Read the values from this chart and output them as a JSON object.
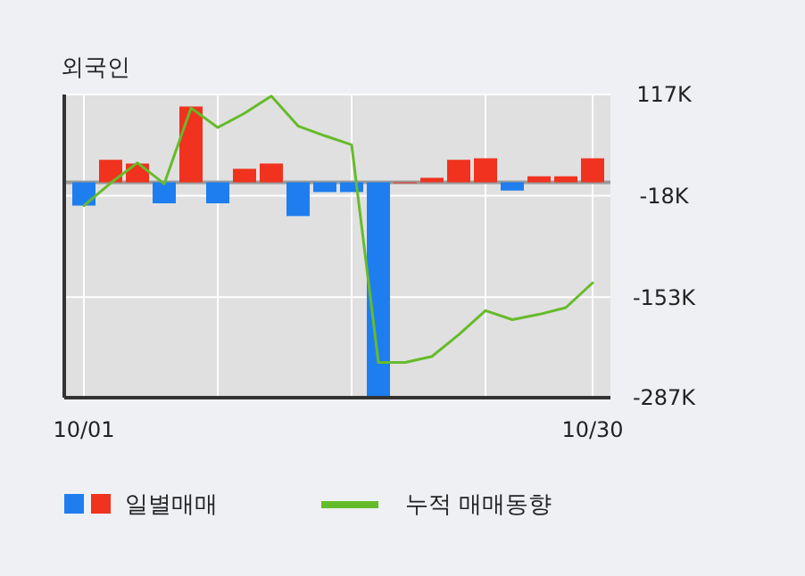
{
  "chart_data": {
    "type": "bar",
    "title": "외국인",
    "categories": [
      "10/01",
      null,
      null,
      null,
      null,
      null,
      null,
      null,
      null,
      null,
      null,
      null,
      null,
      null,
      null,
      null,
      null,
      null,
      null,
      "10/30"
    ],
    "series": [
      {
        "name": "일별매매",
        "colors": [
          "#1e7ef0",
          "#f0321e",
          "#f0321e",
          "#1e7ef0",
          "#f0321e",
          "#1e7ef0",
          "#f0321e",
          "#f0321e",
          "#1e7ef0",
          "#1e7ef0",
          "#1e7ef0",
          "#1e7ef0",
          "#f0321e",
          "#f0321e",
          "#f0321e",
          "#f0321e",
          "#1e7ef0",
          "#f0321e",
          "#f0321e",
          "#f0321e"
        ],
        "values": [
          -31,
          30,
          25,
          -28,
          101,
          -28,
          18,
          25,
          -45,
          -13,
          -13,
          -285,
          0,
          6,
          30,
          32,
          -11,
          8,
          8,
          32
        ]
      },
      {
        "name": "누적 매매동향",
        "type": "line",
        "color": "#66bb2a",
        "values": [
          -31,
          -1,
          26,
          -2,
          99,
          73,
          92,
          115,
          75,
          62,
          50,
          -240,
          -240,
          -232,
          -203,
          -171,
          -183,
          -176,
          -167,
          -134
        ]
      }
    ],
    "ylim": [
      -287,
      117
    ],
    "yticks": [
      {
        "value": 117,
        "label": "117K"
      },
      {
        "value": -18,
        "label": "-18K"
      },
      {
        "value": -153,
        "label": "-153K"
      },
      {
        "value": -287,
        "label": "-287K"
      }
    ],
    "grid": true,
    "legend": "bottom"
  }
}
